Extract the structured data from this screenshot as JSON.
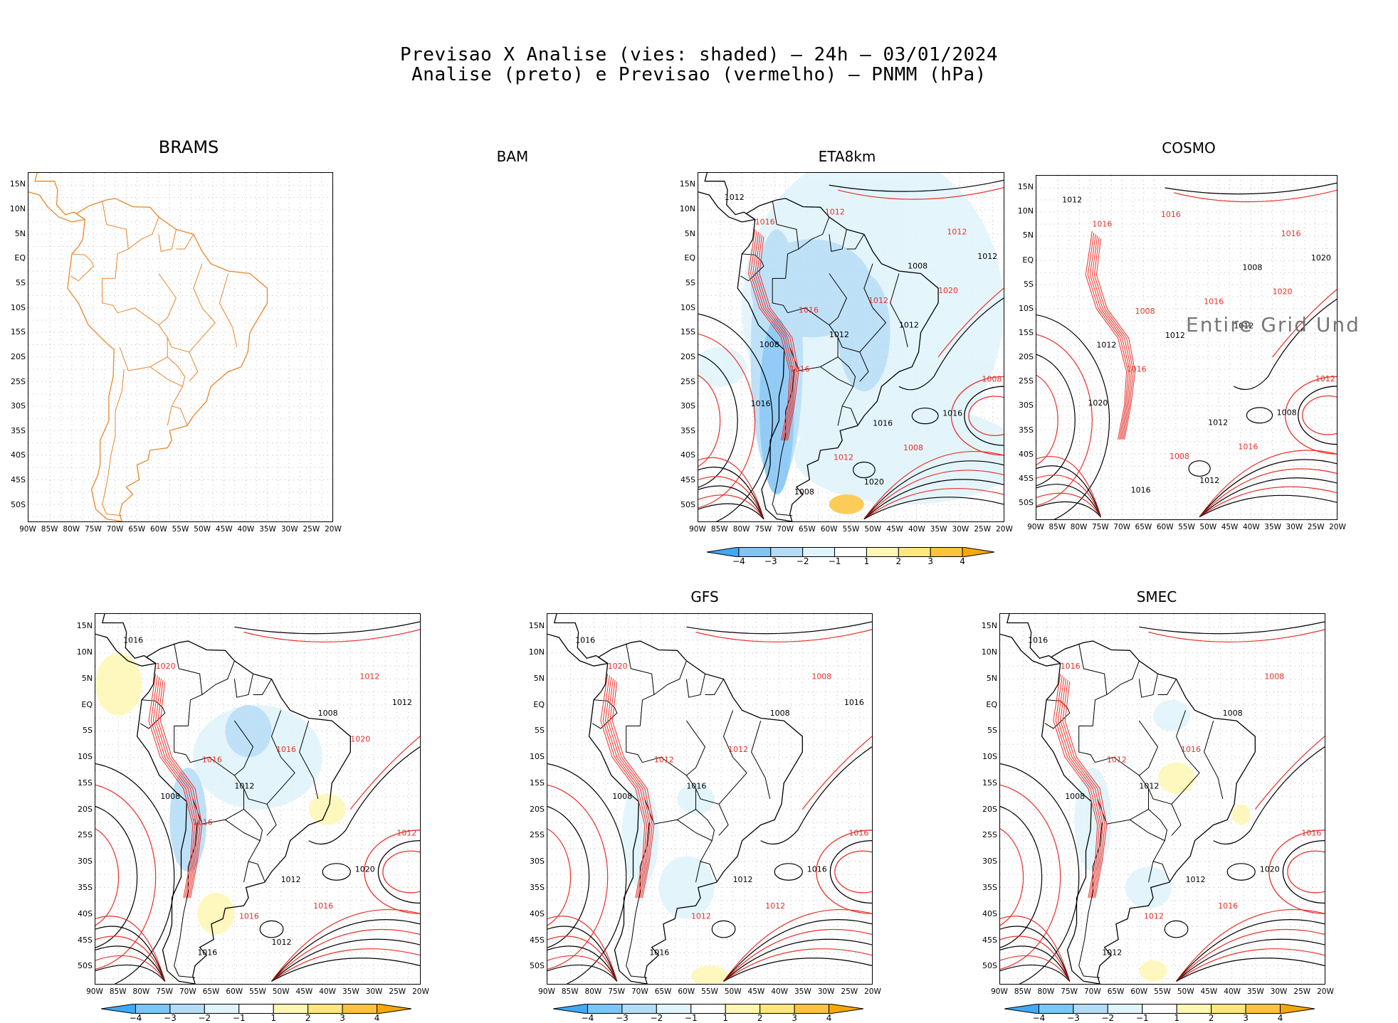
{
  "header": {
    "line1": "Previsao X Analise (vies: shaded) — 24h — 03/01/2024",
    "line2": "Analise (preto) e Previsao (vermelho) — PNMM (hPa)"
  },
  "axes": {
    "lat_labels": [
      "15N",
      "10N",
      "5N",
      "EQ",
      "5S",
      "10S",
      "15S",
      "20S",
      "25S",
      "30S",
      "35S",
      "40S",
      "45S",
      "50S"
    ],
    "lon_labels": [
      "90W",
      "85W",
      "80W",
      "75W",
      "70W",
      "65W",
      "60W",
      "55W",
      "50W",
      "45W",
      "40W",
      "35W",
      "30W",
      "25W",
      "20W"
    ]
  },
  "colorbar": {
    "labels": [
      "−4",
      "−3",
      "−2",
      "−1",
      "1",
      "2",
      "3",
      "4"
    ],
    "colors": [
      "#3fa9f5",
      "#7fc4f5",
      "#b4dcf7",
      "#dff4fb",
      "#ffffff",
      "#fff7b3",
      "#ffe680",
      "#fcc43c",
      "#f7a800"
    ]
  },
  "colors": {
    "analysis": "#000000",
    "forecast": "#e8302a",
    "coast_brams": "#e8862a"
  },
  "panels": [
    {
      "id": "brams",
      "title": "BRAMS",
      "has_panel": true
    },
    {
      "id": "bam",
      "title": "BAM",
      "has_panel": false
    },
    {
      "id": "eta8km",
      "title": "ETA8km",
      "has_panel": true
    },
    {
      "id": "cosmo",
      "title": "COSMO",
      "has_panel": true,
      "message": "Entire Grid Und"
    },
    {
      "id": "panel5",
      "title": "",
      "has_panel": true
    },
    {
      "id": "gfs",
      "title": "GFS",
      "has_panel": true
    },
    {
      "id": "smec",
      "title": "SMEC",
      "has_panel": true
    }
  ],
  "isobar_labels": {
    "eta8km": [
      "1012",
      "1016",
      "1016",
      "1012",
      "1008",
      "1012",
      "1008",
      "1008",
      "1008",
      "1012",
      "1016",
      "1016",
      "1012",
      "1008",
      "1012",
      "1016",
      "1020",
      "1020",
      "1016",
      "1012",
      "1012"
    ],
    "cosmo": [
      "1012",
      "1008",
      "1012",
      "1016",
      "1012",
      "1008",
      "1008",
      "1012",
      "1016",
      "1016",
      "1008",
      "1016",
      "1012",
      "1016",
      "1020",
      "1016",
      "1012",
      "1020",
      "1020",
      "1016",
      "1012"
    ],
    "panel5": [
      "1016",
      "1016",
      "1012",
      "1012",
      "1008",
      "1016",
      "1008",
      "1012",
      "1016",
      "1016",
      "1020",
      "1020",
      "1012",
      "1016",
      "1012",
      "1016",
      "1012",
      "1020"
    ],
    "gfs": [
      "1016",
      "1012",
      "1012",
      "1008",
      "1008",
      "1012",
      "1008",
      "1016",
      "1016",
      "1012",
      "1016",
      "1020",
      "1016",
      "1012",
      "1016"
    ],
    "smec": [
      "1016",
      "1012",
      "1012",
      "1008",
      "1008",
      "1012",
      "1008",
      "1016",
      "1012",
      "1016",
      "1020",
      "1016",
      "1012",
      "1016"
    ]
  }
}
